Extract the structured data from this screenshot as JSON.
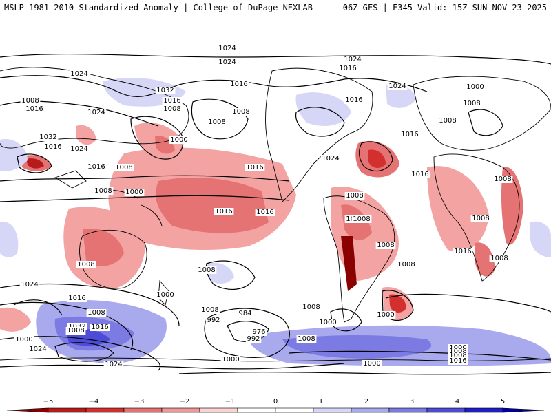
{
  "header": {
    "left_title": "MSLP 1981–2010 Standardized Anomaly | College of DuPage NEXLAB",
    "right_title": "06Z GFS | F345 Valid: 15Z SUN NOV 23 2025"
  },
  "map": {
    "isobar_labels": [
      "1024",
      "1024",
      "1024",
      "1016",
      "1024",
      "1032",
      "1016",
      "1016",
      "1008",
      "1016",
      "1008",
      "1000",
      "1008",
      "1024",
      "1016",
      "1008",
      "1016",
      "1008",
      "1032",
      "1024",
      "1016",
      "1024",
      "1016",
      "1008",
      "1000",
      "1008",
      "1024",
      "1016",
      "1008",
      "1016",
      "1000",
      "1016",
      "1008",
      "1008",
      "1008",
      "1008",
      "1008",
      "1008",
      "1016",
      "1008",
      "1008",
      "1008",
      "1016",
      "1008",
      "1008",
      "1000",
      "1008",
      "1000",
      "984",
      "992",
      "976",
      "992",
      "1008",
      "1000",
      "1000",
      "1024",
      "1016",
      "1008",
      "1032",
      "1016",
      "1000",
      "1024",
      "1008",
      "1024",
      "1000",
      "1008",
      "1000",
      "1008",
      "1016"
    ],
    "colors": {
      "ocean": "#ffffff",
      "coast": "#000000",
      "isobar": "#000000"
    }
  },
  "colorbar": {
    "ticks": [
      "−5",
      "−4",
      "−3",
      "−2",
      "−1",
      "0",
      "1",
      "2",
      "3",
      "4",
      "5"
    ],
    "colors": [
      "#8b0000",
      "#b71c1c",
      "#d32f2f",
      "#e57373",
      "#ef9a9a",
      "#fbd3d3",
      "#ffffff",
      "#ffffff",
      "#d6d6f7",
      "#a9a9ee",
      "#7b7be3",
      "#4c4cd6",
      "#1e1ec6",
      "#0000a0"
    ]
  }
}
